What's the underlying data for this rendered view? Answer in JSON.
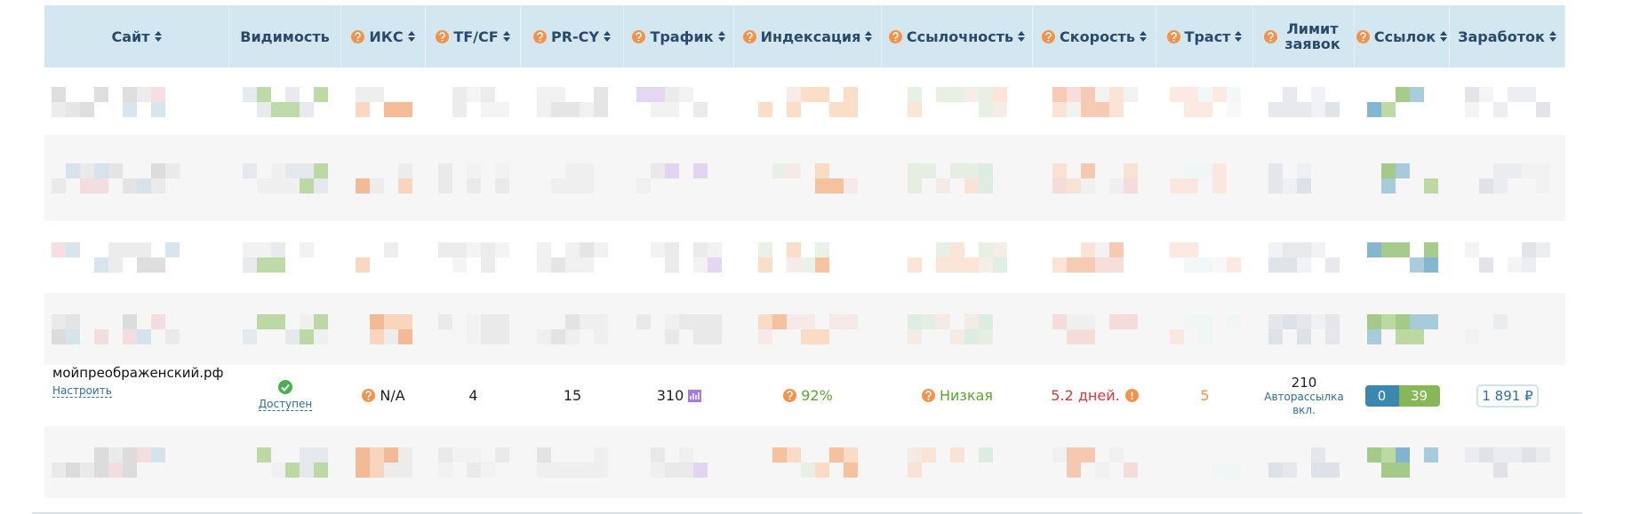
{
  "table": {
    "headers": [
      {
        "label": "Сайт",
        "help": false,
        "sortable": true
      },
      {
        "label": "Видимость",
        "help": false,
        "sortable": false
      },
      {
        "label": "ИКС",
        "help": true,
        "sortable": true
      },
      {
        "label": "TF/CF",
        "help": true,
        "sortable": true
      },
      {
        "label": "PR-CY",
        "help": true,
        "sortable": true
      },
      {
        "label": "Трафик",
        "help": true,
        "sortable": true
      },
      {
        "label": "Индексация",
        "help": true,
        "sortable": true
      },
      {
        "label": "Ссылочность",
        "help": true,
        "sortable": true
      },
      {
        "label": "Скорость",
        "help": true,
        "sortable": true
      },
      {
        "label": "Траст",
        "help": true,
        "sortable": true
      },
      {
        "label": "Лимит заявок",
        "help": true,
        "sortable": false
      },
      {
        "label": "Ссылок",
        "help": true,
        "sortable": true
      },
      {
        "label": "Заработок",
        "help": false,
        "sortable": true
      }
    ],
    "row": {
      "site": "мойпреображенский.рф",
      "configure": "Настроить",
      "visibility": "Доступен",
      "iks": "N/A",
      "tfcf": "4",
      "prcy": "15",
      "traffic": "310",
      "indexation": "92%",
      "link_quality": "Низкая",
      "speed": "5.2 дней.",
      "trust": "5",
      "limit": "210",
      "limit_note": "Авторассылка вкл.",
      "links_in": "0",
      "links_out": "39",
      "earnings": "1 891 ₽"
    }
  }
}
